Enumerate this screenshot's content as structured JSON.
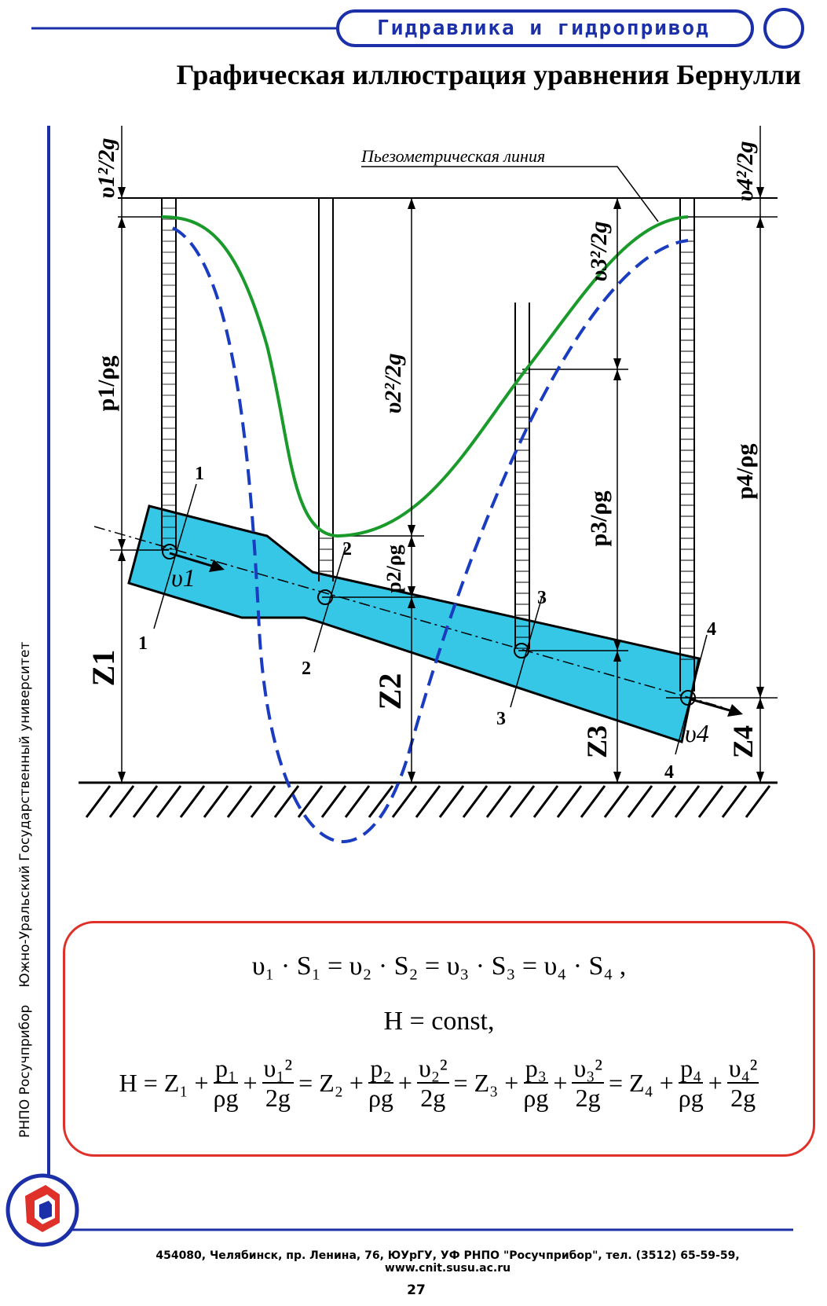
{
  "header": {
    "section_title": "Гидравлика и гидропривод"
  },
  "title": "Графическая иллюстрация уравнения Бернулли",
  "side_text": {
    "org": "РНПО Росучприбор",
    "university": "Южно-Уральский Государственный университет"
  },
  "diagram": {
    "piezometric_line_label": "Пьезометрическая линия",
    "section_labels": [
      "1",
      "2",
      "3",
      "4"
    ],
    "velocity_labels": [
      "υ1",
      "υ4"
    ],
    "height_labels": [
      "Z1",
      "Z2",
      "Z3",
      "Z4"
    ],
    "pressure_heads": [
      "p1/ρg",
      "p2/ρg",
      "p3/ρg",
      "p4/ρg"
    ],
    "velocity_heads": [
      "υ1²/2g",
      "υ2²/2g",
      "υ3²/2g",
      "υ4²/2g"
    ],
    "colors": {
      "pipe_fill": "#36c6e6",
      "piezometric_line": "#1a9a2a",
      "dashed_curve": "#1a3cc0",
      "frame_blue": "#1a2fa8",
      "box_border": "#e0302a"
    }
  },
  "equations": {
    "continuity": "υ₁ · S₁ = υ₂ · S₂ = υ₃ · S₃ = υ₄ · S₄ ,",
    "const": "H = const,",
    "bernoulli": {
      "lhs": "H = Z₁ +",
      "eq2": "= Z₂ +",
      "eq3": "= Z₃ +",
      "eq4": "= Z₄ +",
      "plus": "+",
      "p1": "p₁",
      "p2": "p₂",
      "p3": "p₃",
      "p4": "p₄",
      "rho_g": "ρg",
      "v1": "υ₁²",
      "v2": "υ₂²",
      "v3": "υ₃²",
      "v4": "υ₄²",
      "two_g": "2g"
    }
  },
  "footer": {
    "address": "454080, Челябинск, пр. Ленина, 76, ЮУрГУ, УФ РНПО \"Росучприбор\", тел. (3512) 65-59-59, www.cnit.susu.ac.ru",
    "page_number": "27"
  }
}
